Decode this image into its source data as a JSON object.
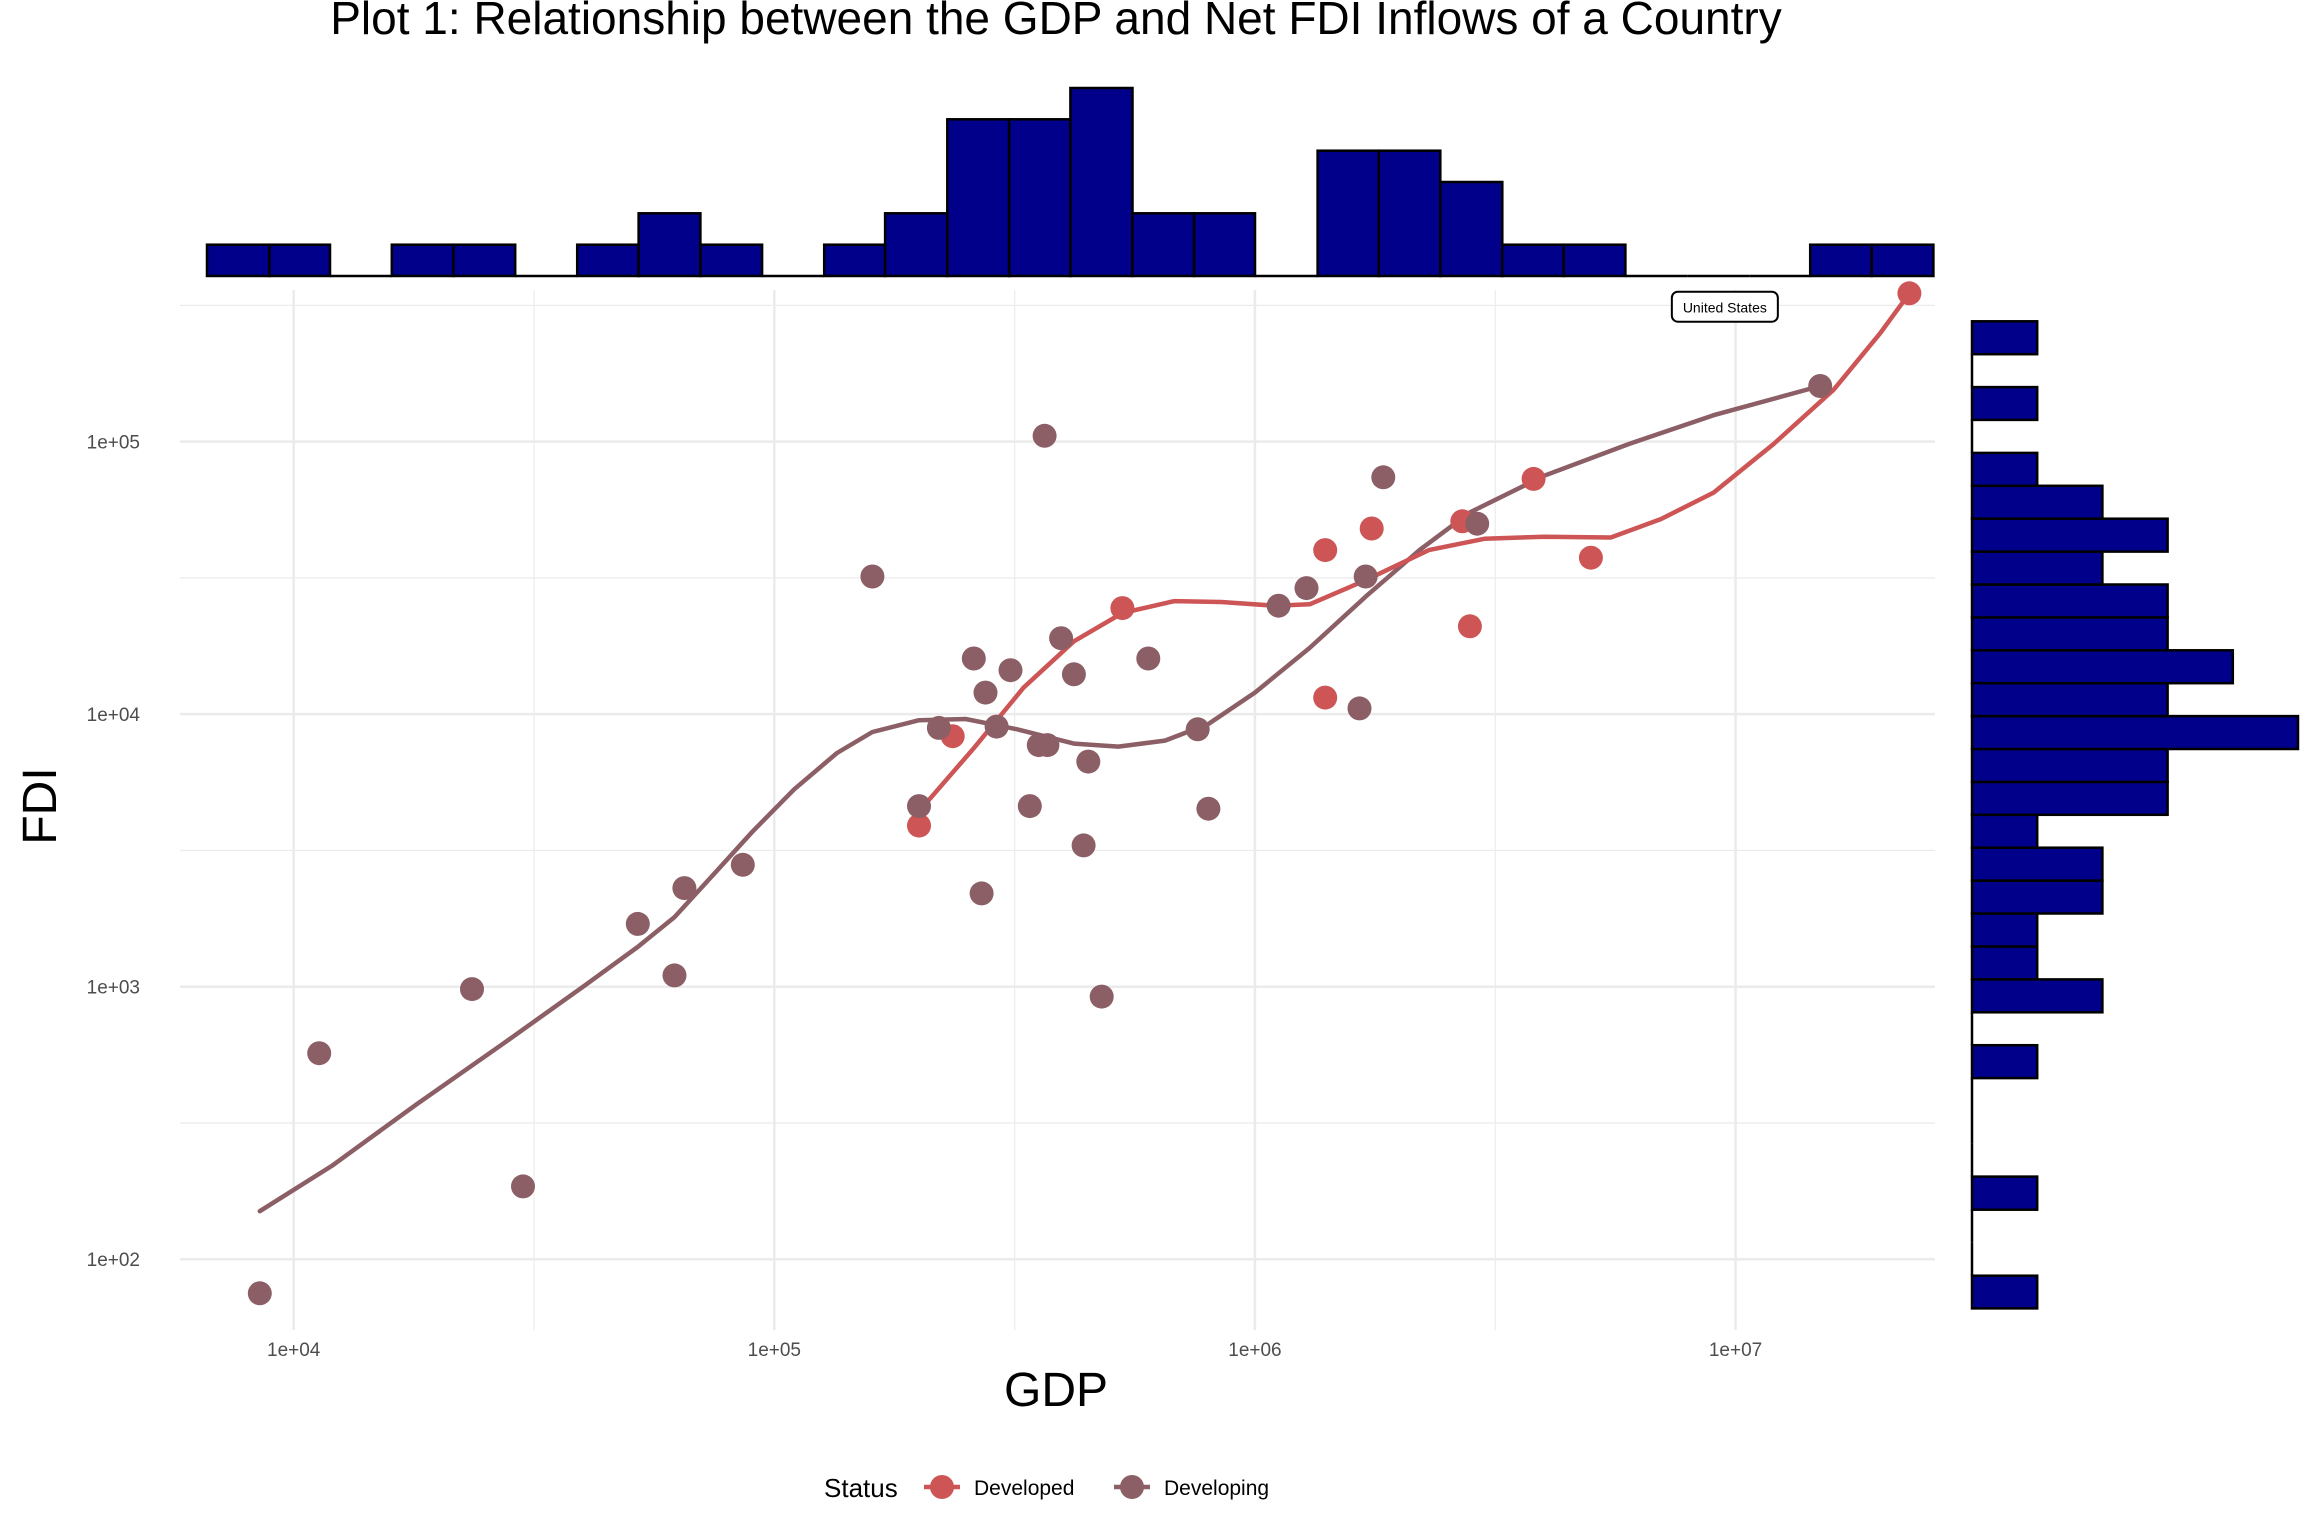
{
  "chart_data": {
    "type": "scatter",
    "title": "Plot 1: Relationship between the GDP and Net FDI Inflows of a Country",
    "xlabel": "GDP",
    "ylabel": "FDI",
    "x_scale": "log10",
    "y_scale": "log10",
    "xlim": [
      5800,
      26000000
    ],
    "ylim": [
      55,
      360000
    ],
    "x_ticks": [
      {
        "value": 10000,
        "label": "1e+04"
      },
      {
        "value": 100000,
        "label": "1e+05"
      },
      {
        "value": 1000000,
        "label": "1e+06"
      },
      {
        "value": 10000000,
        "label": "1e+07"
      }
    ],
    "y_ticks": [
      {
        "value": 100,
        "label": "1e+02"
      },
      {
        "value": 1000,
        "label": "1e+03"
      },
      {
        "value": 10000,
        "label": "1e+04"
      },
      {
        "value": 100000,
        "label": "1e+05"
      }
    ],
    "grid": true,
    "legend": {
      "title": "Status",
      "position": "bottom",
      "entries": [
        {
          "name": "Developed",
          "color": "#CD5555"
        },
        {
          "name": "Developing",
          "color": "#8B5F65"
        }
      ]
    },
    "annotation": {
      "text": "United States",
      "x": 9500000,
      "y": 310000
    },
    "series": [
      {
        "name": "Developed",
        "color": "#CD5555",
        "points": [
          [
            200000,
            3900
          ],
          [
            235000,
            8300
          ],
          [
            530000,
            24500
          ],
          [
            1400000,
            40000
          ],
          [
            1400000,
            11500
          ],
          [
            1750000,
            48000
          ],
          [
            2700000,
            51000
          ],
          [
            2800000,
            21000
          ],
          [
            3800000,
            73000
          ],
          [
            5000000,
            37500
          ],
          [
            23000000,
            350000
          ]
        ],
        "smooth": [
          [
            200000,
            4400
          ],
          [
            260000,
            7500
          ],
          [
            330000,
            12500
          ],
          [
            420000,
            18500
          ],
          [
            530000,
            23500
          ],
          [
            680000,
            26000
          ],
          [
            850000,
            25800
          ],
          [
            1100000,
            25000
          ],
          [
            1300000,
            25300
          ],
          [
            1700000,
            31000
          ],
          [
            2300000,
            40000
          ],
          [
            3000000,
            44000
          ],
          [
            4000000,
            44800
          ],
          [
            5500000,
            44500
          ],
          [
            7000000,
            52000
          ],
          [
            9000000,
            65000
          ],
          [
            12000000,
            98000
          ],
          [
            16000000,
            155000
          ],
          [
            20000000,
            250000
          ],
          [
            23000000,
            350000
          ]
        ]
      },
      {
        "name": "Developing",
        "color": "#8B5F65",
        "points": [
          [
            8500,
            75
          ],
          [
            11300,
            570
          ],
          [
            23500,
            980
          ],
          [
            30000,
            185
          ],
          [
            52000,
            1700
          ],
          [
            62000,
            1100
          ],
          [
            65000,
            2300
          ],
          [
            86000,
            2800
          ],
          [
            160000,
            32000
          ],
          [
            200000,
            4600
          ],
          [
            220000,
            8900
          ],
          [
            260000,
            16000
          ],
          [
            270000,
            2200
          ],
          [
            275000,
            12000
          ],
          [
            290000,
            9000
          ],
          [
            310000,
            14500
          ],
          [
            340000,
            4600
          ],
          [
            355000,
            7700
          ],
          [
            365000,
            105000
          ],
          [
            370000,
            7700
          ],
          [
            395000,
            19000
          ],
          [
            420000,
            14000
          ],
          [
            440000,
            3300
          ],
          [
            450000,
            6700
          ],
          [
            480000,
            920
          ],
          [
            600000,
            16000
          ],
          [
            760000,
            8800
          ],
          [
            800000,
            4500
          ],
          [
            1120000,
            25000
          ],
          [
            1280000,
            29000
          ],
          [
            1650000,
            10500
          ],
          [
            1700000,
            32000
          ],
          [
            1850000,
            74000
          ],
          [
            2900000,
            50000
          ],
          [
            15000000,
            160000
          ]
        ],
        "smooth": [
          [
            8500,
            150
          ],
          [
            12000,
            220
          ],
          [
            18000,
            370
          ],
          [
            27000,
            610
          ],
          [
            40000,
            1000
          ],
          [
            52000,
            1400
          ],
          [
            62000,
            1800
          ],
          [
            75000,
            2600
          ],
          [
            90000,
            3700
          ],
          [
            110000,
            5300
          ],
          [
            135000,
            7200
          ],
          [
            160000,
            8600
          ],
          [
            200000,
            9500
          ],
          [
            250000,
            9600
          ],
          [
            320000,
            8800
          ],
          [
            420000,
            7800
          ],
          [
            520000,
            7600
          ],
          [
            650000,
            8000
          ],
          [
            800000,
            9200
          ],
          [
            1000000,
            12000
          ],
          [
            1300000,
            17500
          ],
          [
            1700000,
            27000
          ],
          [
            2200000,
            40000
          ],
          [
            2800000,
            55000
          ],
          [
            4000000,
            75000
          ],
          [
            6000000,
            98000
          ],
          [
            9000000,
            125000
          ],
          [
            15000000,
            160000
          ]
        ]
      }
    ],
    "top_histogram": {
      "fill": "#00008B",
      "bins": [
        {
          "x0": 6600,
          "x1": 8900,
          "count": 1
        },
        {
          "x0": 8900,
          "x1": 11900,
          "count": 1
        },
        {
          "x0": 11900,
          "x1": 16000,
          "count": 0
        },
        {
          "x0": 16000,
          "x1": 21500,
          "count": 1
        },
        {
          "x0": 21500,
          "x1": 28900,
          "count": 1
        },
        {
          "x0": 28900,
          "x1": 38900,
          "count": 0
        },
        {
          "x0": 38900,
          "x1": 52200,
          "count": 1
        },
        {
          "x0": 52200,
          "x1": 70200,
          "count": 2
        },
        {
          "x0": 70200,
          "x1": 94300,
          "count": 1
        },
        {
          "x0": 94300,
          "x1": 127000,
          "count": 0
        },
        {
          "x0": 127000,
          "x1": 170000,
          "count": 1
        },
        {
          "x0": 170000,
          "x1": 229000,
          "count": 2
        },
        {
          "x0": 229000,
          "x1": 308000,
          "count": 5
        },
        {
          "x0": 308000,
          "x1": 413000,
          "count": 5
        },
        {
          "x0": 413000,
          "x1": 556000,
          "count": 6
        },
        {
          "x0": 556000,
          "x1": 747000,
          "count": 2
        },
        {
          "x0": 747000,
          "x1": 1000000,
          "count": 2
        },
        {
          "x0": 1000000,
          "x1": 1350000,
          "count": 0
        },
        {
          "x0": 1350000,
          "x1": 1810000,
          "count": 4
        },
        {
          "x0": 1810000,
          "x1": 2430000,
          "count": 4
        },
        {
          "x0": 2430000,
          "x1": 3270000,
          "count": 3
        },
        {
          "x0": 3270000,
          "x1": 4390000,
          "count": 1
        },
        {
          "x0": 4390000,
          "x1": 5900000,
          "count": 1
        },
        {
          "x0": 5900000,
          "x1": 7930000,
          "count": 0
        },
        {
          "x0": 7930000,
          "x1": 10700000,
          "count": 0
        },
        {
          "x0": 10700000,
          "x1": 14300000,
          "count": 0
        },
        {
          "x0": 14300000,
          "x1": 19200000,
          "count": 1
        },
        {
          "x0": 19200000,
          "x1": 25800000,
          "count": 1
        }
      ]
    },
    "right_histogram": {
      "fill": "#00008B",
      "bins": [
        {
          "y0": 66,
          "y1": 87,
          "count": 1
        },
        {
          "y0": 87,
          "y1": 115,
          "count": 0
        },
        {
          "y0": 115,
          "y1": 152,
          "count": 0
        },
        {
          "y0": 152,
          "y1": 201,
          "count": 1
        },
        {
          "y0": 201,
          "y1": 265,
          "count": 0
        },
        {
          "y0": 265,
          "y1": 350,
          "count": 0
        },
        {
          "y0": 350,
          "y1": 462,
          "count": 0
        },
        {
          "y0": 462,
          "y1": 610,
          "count": 1
        },
        {
          "y0": 610,
          "y1": 806,
          "count": 0
        },
        {
          "y0": 806,
          "y1": 1064,
          "count": 2
        },
        {
          "y0": 1064,
          "y1": 1405,
          "count": 1
        },
        {
          "y0": 1405,
          "y1": 1855,
          "count": 1
        },
        {
          "y0": 1855,
          "y1": 2450,
          "count": 2
        },
        {
          "y0": 2450,
          "y1": 3235,
          "count": 2
        },
        {
          "y0": 3235,
          "y1": 4272,
          "count": 1
        },
        {
          "y0": 4272,
          "y1": 5641,
          "count": 3
        },
        {
          "y0": 5641,
          "y1": 7449,
          "count": 3
        },
        {
          "y0": 7449,
          "y1": 9836,
          "count": 5
        },
        {
          "y0": 9836,
          "y1": 12990,
          "count": 3
        },
        {
          "y0": 12990,
          "y1": 17150,
          "count": 4
        },
        {
          "y0": 17150,
          "y1": 22650,
          "count": 3
        },
        {
          "y0": 22650,
          "y1": 29910,
          "count": 3
        },
        {
          "y0": 29910,
          "y1": 39490,
          "count": 2
        },
        {
          "y0": 39490,
          "y1": 52150,
          "count": 3
        },
        {
          "y0": 52150,
          "y1": 68860,
          "count": 2
        },
        {
          "y0": 68860,
          "y1": 90930,
          "count": 1
        },
        {
          "y0": 90930,
          "y1": 120100,
          "count": 0
        },
        {
          "y0": 120100,
          "y1": 158500,
          "count": 1
        },
        {
          "y0": 158500,
          "y1": 209300,
          "count": 0
        },
        {
          "y0": 209300,
          "y1": 276400,
          "count": 1
        }
      ]
    }
  }
}
